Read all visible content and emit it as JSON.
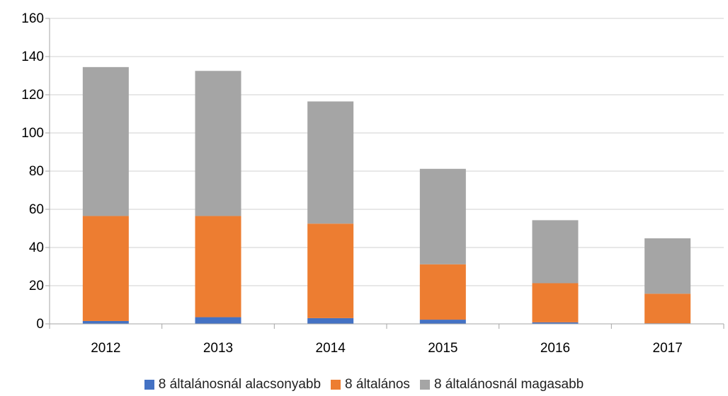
{
  "chart_data": {
    "type": "bar",
    "stacked": true,
    "categories": [
      "2012",
      "2013",
      "2014",
      "2015",
      "2016",
      "2017"
    ],
    "series": [
      {
        "name": "8 általánosnál alacsonyabb",
        "color": "#4472C4",
        "values": [
          1.5,
          3.5,
          3,
          2.2,
          0.8,
          0.3
        ]
      },
      {
        "name": "8 általános",
        "color": "#ED7D31",
        "values": [
          55,
          53,
          49.5,
          29,
          20.5,
          15.5
        ]
      },
      {
        "name": "8 általánosnál magasabb",
        "color": "#A5A5A5",
        "values": [
          78,
          76,
          64,
          50,
          33,
          29
        ]
      }
    ],
    "ylim": [
      0,
      160
    ],
    "yticks": [
      "0",
      "20",
      "40",
      "60",
      "80",
      "100",
      "120",
      "140",
      "160"
    ],
    "grid": true,
    "legend_position": "bottom"
  }
}
